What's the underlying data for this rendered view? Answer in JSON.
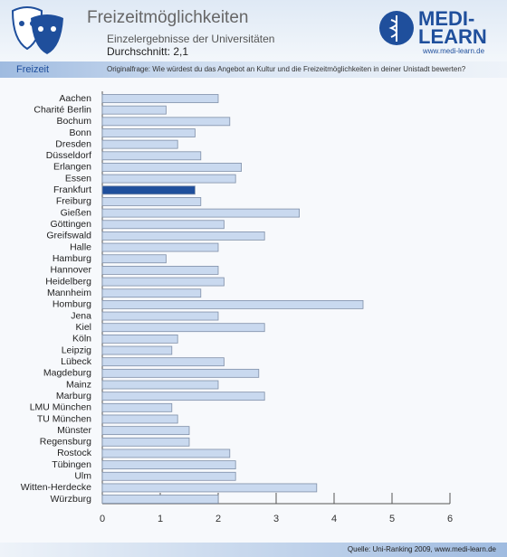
{
  "header": {
    "title": "Freizeitmöglichkeiten",
    "subtitle": "Einzelergebnisse der Universitäten",
    "average": "Durchschnitt: 2,1",
    "section": "Freizeit",
    "question": "Originalfrage: Wie würdest du das Angebot an Kultur und die Freizeitmöglichkeiten in deiner Unistadt bewerten?",
    "logo_top": "MEDI-",
    "logo_bottom": "LEARN",
    "logo_url": "www.medi-learn.de"
  },
  "footer": {
    "source": "Quelle: Uni-Ranking 2009, www.medi-learn.de"
  },
  "chart_data": {
    "type": "bar",
    "orientation": "horizontal",
    "categories": [
      "Aachen",
      "Charité  Berlin",
      "Bochum",
      "Bonn",
      "Dresden",
      "Düsseldorf",
      "Erlangen",
      "Essen",
      "Frankfurt",
      "Freiburg",
      "Gießen",
      "Göttingen",
      "Greifswald",
      "Halle",
      "Hamburg",
      "Hannover",
      "Heidelberg",
      "Mannheim",
      "Homburg",
      "Jena",
      "Kiel",
      "Köln",
      "Leipzig",
      "Lübeck",
      "Magdeburg",
      "Mainz",
      "Marburg",
      "LMU München",
      "TU München",
      "Münster",
      "Regensburg",
      "Rostock",
      "Tübingen",
      "Ulm",
      "Witten-Herdecke",
      "Würzburg"
    ],
    "values": [
      2.0,
      1.1,
      2.2,
      1.6,
      1.3,
      1.7,
      2.4,
      2.3,
      1.6,
      1.7,
      3.4,
      2.1,
      2.8,
      2.0,
      1.1,
      2.0,
      2.1,
      1.7,
      4.5,
      2.0,
      2.8,
      1.3,
      1.2,
      2.1,
      2.7,
      2.0,
      2.8,
      1.2,
      1.3,
      1.5,
      1.5,
      2.2,
      2.3,
      2.3,
      3.7,
      2.0
    ],
    "colors": [
      "#c9d9ef",
      "#c9d9ef",
      "#c9d9ef",
      "#c9d9ef",
      "#c9d9ef",
      "#c9d9ef",
      "#c9d9ef",
      "#c9d9ef",
      "#1f4f9c",
      "#c9d9ef",
      "#c9d9ef",
      "#c9d9ef",
      "#c9d9ef",
      "#c9d9ef",
      "#c9d9ef",
      "#c9d9ef",
      "#c9d9ef",
      "#c9d9ef",
      "#c9d9ef",
      "#c9d9ef",
      "#c9d9ef",
      "#c9d9ef",
      "#c9d9ef",
      "#c9d9ef",
      "#c9d9ef",
      "#c9d9ef",
      "#c9d9ef",
      "#c9d9ef",
      "#c9d9ef",
      "#c9d9ef",
      "#c9d9ef",
      "#c9d9ef",
      "#c9d9ef",
      "#c9d9ef",
      "#c9d9ef",
      "#c9d9ef"
    ],
    "xlim": [
      0,
      6
    ],
    "xticks": [
      0,
      1,
      2,
      3,
      4,
      5,
      6
    ]
  }
}
